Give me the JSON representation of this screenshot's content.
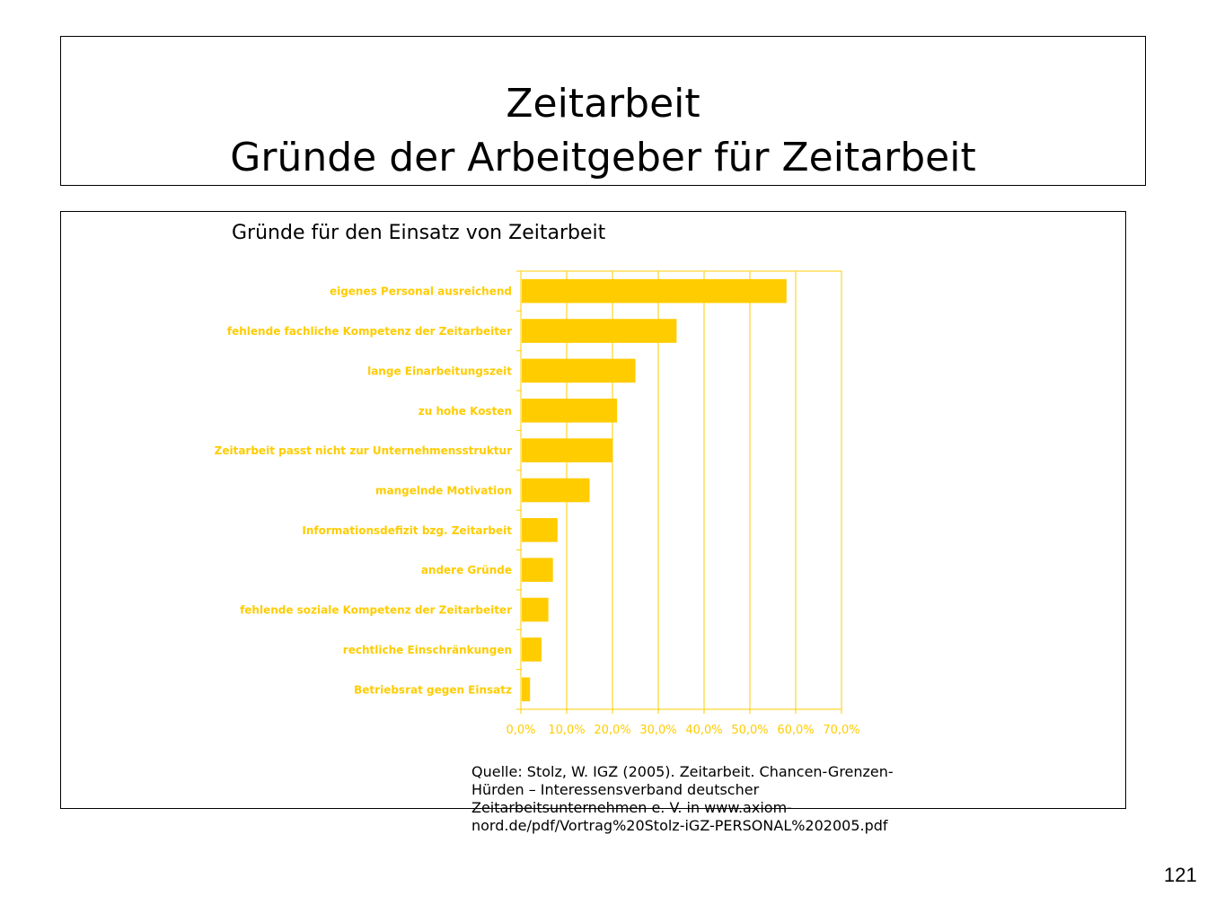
{
  "slide": {
    "title_line1": "Zeitarbeit",
    "title_line2": "Gründe der Arbeitgeber für Zeitarbeit",
    "source_text": "Quelle: Stolz, W. IGZ (2005). Zeitarbeit. Chancen-Grenzen-\nHürden – Interessensverband deutscher\nZeitarbeitsunternehmen e. V. in www.axiom-\nnord.de/pdf/Vortrag%20Stolz-iGZ-PERSONAL%202005.pdf",
    "page_number": "121"
  },
  "chart_data": {
    "type": "bar",
    "orientation": "horizontal",
    "title": "Gründe für den Einsatz von Zeitarbeit",
    "categories": [
      "eigenes Personal ausreichend",
      "fehlende fachliche Kompetenz der Zeitarbeiter",
      "lange Einarbeitungszeit",
      "zu hohe Kosten",
      "Zeitarbeit passt nicht zur Unternehmensstruktur",
      "mangelnde Motivation",
      "Informationsdefizit bzg. Zeitarbeit",
      "andere Gründe",
      "fehlende soziale Kompetenz der Zeitarbeiter",
      "rechtliche Einschränkungen",
      "Betriebsrat gegen Einsatz"
    ],
    "values": [
      58,
      34,
      25,
      21,
      20,
      15,
      8,
      7,
      6,
      4.5,
      2
    ],
    "xlim": [
      0,
      70
    ],
    "xticks": [
      "0,0%",
      "10,0%",
      "20,0%",
      "30,0%",
      "40,0%",
      "50,0%",
      "60,0%",
      "70,0%"
    ],
    "grid": true,
    "legend": "none",
    "bar_color": "#FFCC00",
    "grid_color": "#FFCC00"
  }
}
